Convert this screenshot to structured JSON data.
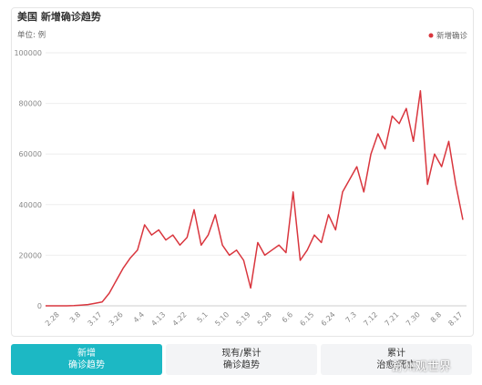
{
  "chart_data": {
    "type": "line",
    "title": "美国 新增确诊趋势",
    "unit": "单位: 例",
    "categories": [
      null,
      null,
      "2.28",
      null,
      null,
      "3.8",
      null,
      null,
      "3.17",
      null,
      null,
      "3.26",
      null,
      null,
      "4.4",
      null,
      null,
      "4.13",
      null,
      null,
      "4.22",
      null,
      null,
      "5.1",
      null,
      null,
      "5.10",
      null,
      null,
      "5.19",
      null,
      null,
      "5.28",
      null,
      null,
      "6.6",
      null,
      null,
      "6.15",
      null,
      null,
      "6.24",
      null,
      null,
      "7.3",
      null,
      null,
      "7.12",
      null,
      null,
      "7.21",
      null,
      null,
      "7.30",
      null,
      null,
      "8.8",
      null,
      null,
      "8.17"
    ],
    "series": [
      {
        "name": "新增确诊",
        "color": "#d9363e",
        "values": [
          0,
          0,
          0,
          0,
          100,
          300,
          500,
          1000,
          1500,
          5000,
          10000,
          15000,
          19000,
          22000,
          32000,
          28000,
          30000,
          26000,
          28000,
          24000,
          27000,
          38000,
          24000,
          28000,
          36000,
          24000,
          20000,
          22000,
          18000,
          7000,
          25000,
          20000,
          22000,
          24000,
          21000,
          45000,
          18000,
          22000,
          28000,
          25000,
          36000,
          30000,
          45000,
          50000,
          55000,
          45000,
          60000,
          68000,
          62000,
          75000,
          72000,
          78000,
          65000,
          85000,
          48000,
          60000,
          55000,
          65000,
          48000,
          34000
        ]
      }
    ],
    "ylim": [
      0,
      100000
    ],
    "yticks": [
      0,
      20000,
      40000,
      60000,
      80000,
      100000
    ],
    "grid": true,
    "legend": "top-right"
  },
  "tabs": [
    {
      "line1": "新增",
      "line2": "确诊趋势"
    },
    {
      "line1": "现有/累计",
      "line2": "确诊趋势"
    },
    {
      "line1": "累计",
      "line2": "治愈/死亡"
    }
  ],
  "watermark": "舒州观世界"
}
